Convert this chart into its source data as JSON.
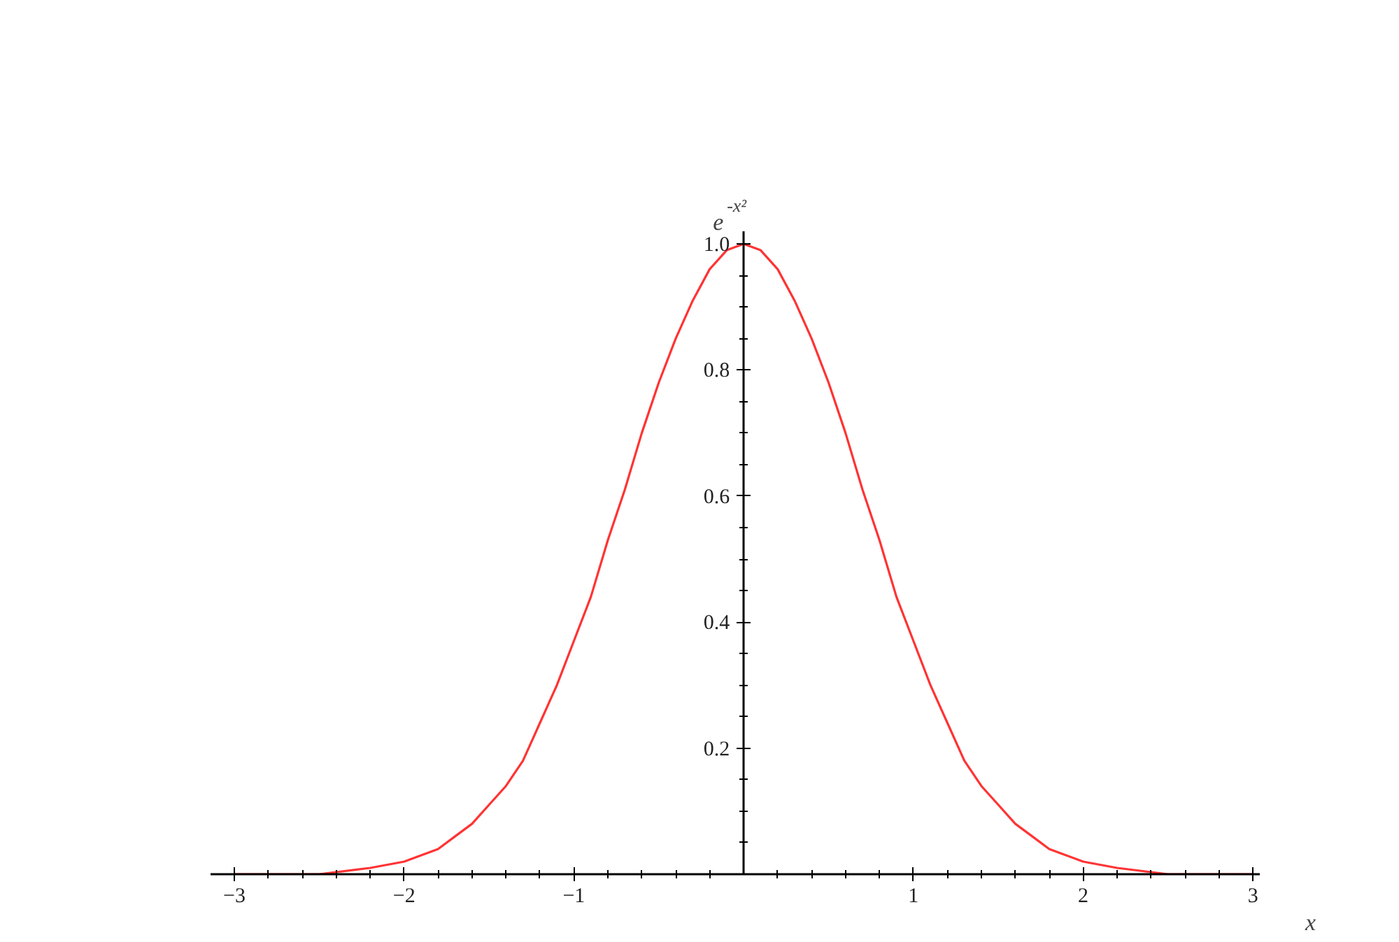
{
  "chart_data": {
    "type": "line",
    "xlabel": "x",
    "ylabel": "e$^{-x²}$",
    "x": [
      -3.0,
      -2.5,
      -2.2,
      -2.0,
      -1.9,
      -1.8,
      -1.7,
      -1.6,
      -1.5,
      -1.4,
      -1.3,
      -1.2,
      -1.1,
      -1.0,
      -0.9,
      -0.8,
      -0.7,
      -0.6,
      -0.5,
      -0.4,
      -0.3,
      -0.2,
      -0.1,
      0.0,
      0.1,
      0.2,
      0.3,
      0.4,
      0.5,
      0.6,
      0.7,
      0.8,
      0.9,
      1.0,
      1.1,
      1.2,
      1.3,
      1.4,
      1.5,
      1.6,
      1.7,
      1.8,
      1.9,
      2.0,
      2.2,
      2.5,
      3.0
    ],
    "series": [
      {
        "color": "#ff3333",
        "values": [
          0.0,
          0.0,
          0.01,
          0.02,
          0.03,
          0.04,
          0.06,
          0.08,
          0.11,
          0.14,
          0.18,
          0.24,
          0.3,
          0.37,
          0.44,
          0.53,
          0.61,
          0.7,
          0.78,
          0.85,
          0.91,
          0.96,
          0.99,
          1.0,
          0.99,
          0.96,
          0.91,
          0.85,
          0.78,
          0.7,
          0.61,
          0.53,
          0.44,
          0.37,
          0.3,
          0.24,
          0.18,
          0.14,
          0.11,
          0.08,
          0.06,
          0.04,
          0.03,
          0.02,
          0.01,
          0.0,
          0.0
        ]
      }
    ],
    "xlim": [
      -3.14,
      3.04
    ],
    "ylim": [
      0,
      1.02
    ],
    "xticks": [
      {
        "value": -3,
        "label": "−3"
      },
      {
        "value": -2,
        "label": "−2"
      },
      {
        "value": -1,
        "label": "−1"
      },
      1,
      2,
      3,
      {
        "value": -2.8,
        "label": null
      },
      {
        "value": -2.6,
        "label": null
      },
      {
        "value": -2.4,
        "label": null
      },
      {
        "value": -2.2,
        "label": null
      },
      {
        "value": -1.8,
        "label": null
      },
      {
        "value": -1.6,
        "label": null
      },
      {
        "value": -1.4,
        "label": null
      },
      {
        "value": -1.2,
        "label": null
      },
      {
        "value": -0.8,
        "label": null
      },
      {
        "value": -0.6,
        "label": null
      },
      {
        "value": -0.4,
        "label": null
      },
      {
        "value": -0.2,
        "label": null
      },
      {
        "value": 0.2,
        "label": null
      },
      {
        "value": 0.4,
        "label": null
      },
      {
        "value": 0.6,
        "label": null
      },
      {
        "value": 0.8,
        "label": null
      },
      {
        "value": 1.2,
        "label": null
      },
      {
        "value": 1.4,
        "label": null
      },
      {
        "value": 1.6,
        "label": null
      },
      {
        "value": 1.8,
        "label": null
      },
      {
        "value": 2.2,
        "label": null
      },
      {
        "value": 2.4,
        "label": null
      },
      {
        "value": 2.6,
        "label": null
      },
      {
        "value": 2.8,
        "label": null
      }
    ],
    "yticks": [
      0.2,
      0.4,
      0.6,
      0.8,
      {
        "value": 1.0,
        "label": "1.0"
      },
      {
        "value": 0.05,
        "label": null
      },
      {
        "value": 0.1,
        "label": null
      },
      {
        "value": 0.15,
        "label": null
      },
      {
        "value": 0.25,
        "label": null
      },
      {
        "value": 0.3,
        "label": null
      },
      {
        "value": 0.35,
        "label": null
      },
      {
        "value": 0.45,
        "label": null
      },
      {
        "value": 0.5,
        "label": null
      },
      {
        "value": 0.55,
        "label": null
      },
      {
        "value": 0.65,
        "label": null
      },
      {
        "value": 0.7,
        "label": null
      },
      {
        "value": 0.75,
        "label": null
      },
      {
        "value": 0.85,
        "label": null
      },
      {
        "value": 0.9,
        "label": null
      },
      {
        "value": 0.95,
        "label": null
      }
    ],
    "grid": false
  }
}
